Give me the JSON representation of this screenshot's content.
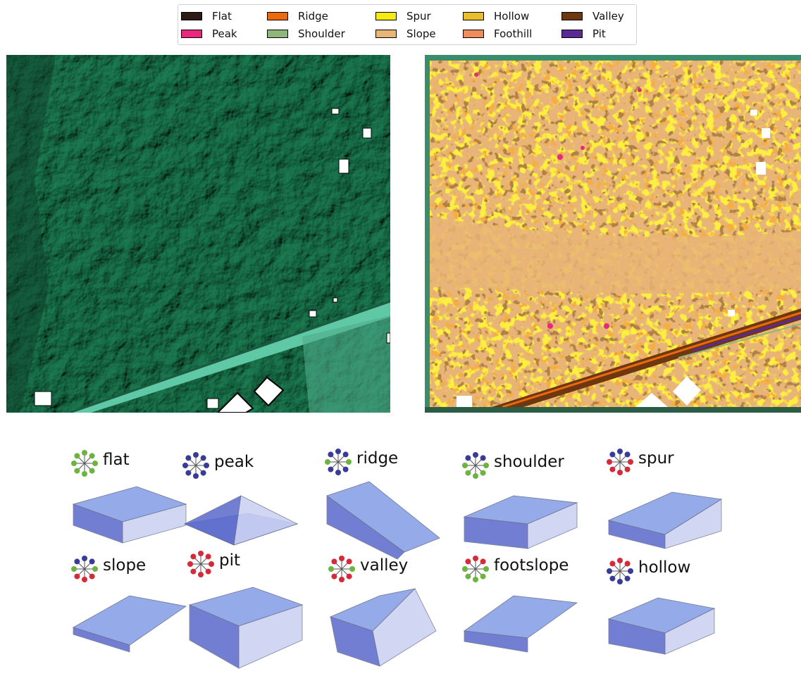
{
  "legend": {
    "items": [
      {
        "label": "Flat",
        "color": "#2b1d14"
      },
      {
        "label": "Peak",
        "color": "#e8277d"
      },
      {
        "label": "Ridge",
        "color": "#ec6a0e"
      },
      {
        "label": "Shoulder",
        "color": "#8fb77c"
      },
      {
        "label": "Spur",
        "color": "#f7ea14"
      },
      {
        "label": "Slope",
        "color": "#e8b477"
      },
      {
        "label": "Hollow",
        "color": "#e9bd2e"
      },
      {
        "label": "Foothill",
        "color": "#ee8c5e"
      },
      {
        "label": "Valley",
        "color": "#6e370f"
      },
      {
        "label": "Pit",
        "color": "#5b2a94"
      }
    ]
  },
  "hillshade": {
    "base_color": "#2f7a62",
    "highlight_color": "#6fd0ac"
  },
  "classified_map": {
    "base_color": "#e8b477"
  },
  "landforms": [
    {
      "label": "flat",
      "pattern": "gggggggg"
    },
    {
      "label": "peak",
      "pattern": "bbbbbbbb"
    },
    {
      "label": "ridge",
      "pattern": "bbgbbbgb"
    },
    {
      "label": "shoulder",
      "pattern": "bbgggggb"
    },
    {
      "label": "spur",
      "pattern": "bbrrrrrb"
    },
    {
      "label": "slope",
      "pattern": "bbgrrrgb"
    },
    {
      "label": "pit",
      "pattern": "rrrrrrrr"
    },
    {
      "label": "valley",
      "pattern": "rrgrrrgr"
    },
    {
      "label": "footslope",
      "pattern": "rrgggggr"
    },
    {
      "label": "hollow",
      "pattern": "rrbbbbbr"
    }
  ],
  "glyph_colors": {
    "g": "#6cb43f",
    "b": "#3a3a98",
    "r": "#d42a3a"
  }
}
